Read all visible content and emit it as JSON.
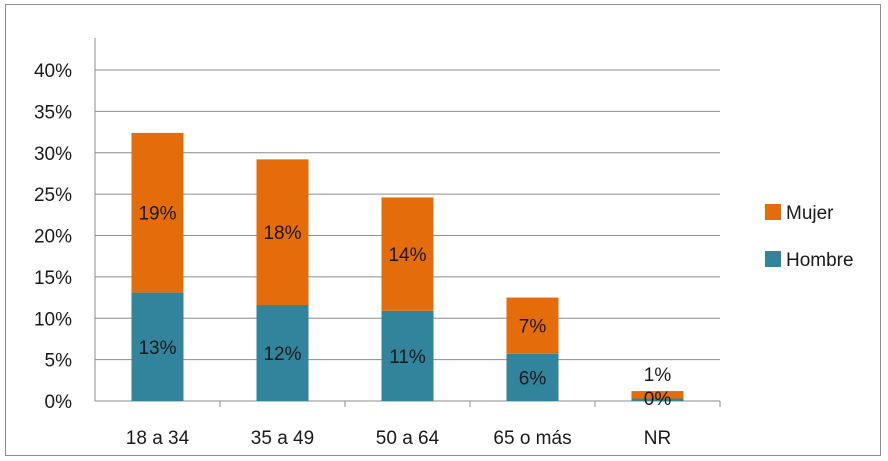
{
  "chart_data": {
    "type": "bar",
    "stacked": true,
    "categories": [
      "18 a 34",
      "35 a 49",
      "50 a 64",
      "65 o más",
      "NR"
    ],
    "series": [
      {
        "name": "Hombre",
        "values": [
          13.1,
          11.6,
          10.9,
          5.7,
          0.3
        ],
        "labels": [
          "13%",
          "12%",
          "11%",
          "6%",
          "0%"
        ],
        "color": "#31849b"
      },
      {
        "name": "Mujer",
        "values": [
          19.3,
          17.6,
          13.7,
          6.8,
          0.9
        ],
        "labels": [
          "19%",
          "18%",
          "14%",
          "7%",
          "1%"
        ],
        "color": "#e46c0a"
      }
    ],
    "ylim": [
      0,
      40
    ],
    "yticks": [
      "0%",
      "5%",
      "10%",
      "15%",
      "20%",
      "25%",
      "30%",
      "35%",
      "40%"
    ],
    "grid": true,
    "legend_position": "right",
    "title": "",
    "xlabel": "",
    "ylabel": ""
  }
}
